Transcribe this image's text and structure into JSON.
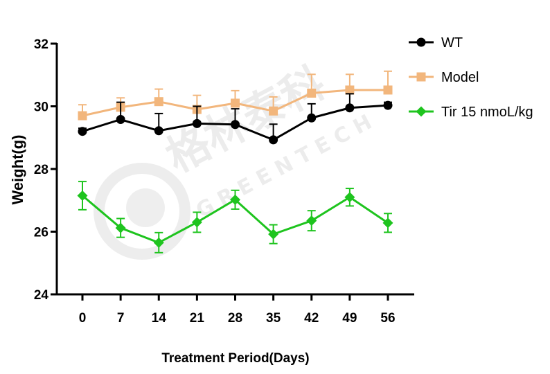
{
  "chart_data": {
    "type": "line",
    "title": "",
    "xlabel": "Treatment Period(Days)",
    "ylabel": "Weight(g)",
    "x": [
      0,
      7,
      14,
      21,
      28,
      35,
      42,
      49,
      56
    ],
    "x_tick_labels": [
      "0",
      "7",
      "14",
      "21",
      "28",
      "35",
      "42",
      "49",
      "56"
    ],
    "ylim": [
      24,
      32
    ],
    "y_ticks": [
      24,
      26,
      28,
      30,
      32
    ],
    "y_tick_labels": [
      "24",
      "26",
      "28",
      "30",
      "32"
    ],
    "legend_position": "top-right",
    "series": [
      {
        "name": "WT",
        "color": "#000000",
        "marker": "circle",
        "values": [
          29.2,
          29.58,
          29.22,
          29.45,
          29.42,
          28.93,
          29.63,
          29.95,
          30.03
        ],
        "errors": [
          0.1,
          0.55,
          0.55,
          0.55,
          0.5,
          0.5,
          0.45,
          0.45,
          0.1
        ]
      },
      {
        "name": "Model",
        "color": "#f2b67c",
        "marker": "square",
        "values": [
          29.7,
          29.97,
          30.15,
          29.9,
          30.1,
          29.85,
          30.42,
          30.52,
          30.52
        ],
        "errors": [
          0.35,
          0.3,
          0.4,
          0.45,
          0.4,
          0.45,
          0.6,
          0.5,
          0.6
        ]
      },
      {
        "name": "Tir 15 nmoL/kg",
        "color": "#1ec41e",
        "marker": "diamond",
        "values": [
          27.15,
          26.12,
          25.65,
          26.3,
          27.02,
          25.92,
          26.35,
          27.1,
          26.28
        ],
        "errors": [
          0.45,
          0.3,
          0.32,
          0.32,
          0.3,
          0.3,
          0.32,
          0.28,
          0.3
        ]
      }
    ]
  }
}
